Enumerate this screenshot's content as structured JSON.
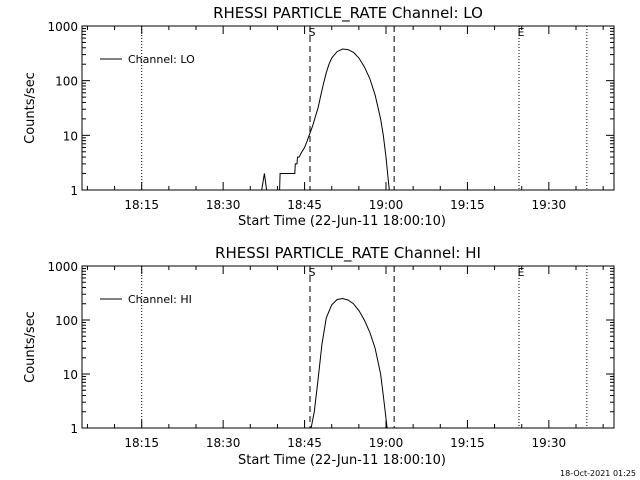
{
  "chart_data": [
    {
      "type": "line",
      "title": "RHESSI PARTICLE_RATE Channel: LO",
      "xlabel": "Start Time (22-Jun-11 18:00:10)",
      "ylabel": "Counts/sec",
      "yscale": "log",
      "ylim": [
        1,
        1000
      ],
      "xlim_minutes": [
        4.0,
        102.0
      ],
      "x_ticks": [
        {
          "label": "18:15",
          "minute": 15
        },
        {
          "label": "18:30",
          "minute": 30
        },
        {
          "label": "18:45",
          "minute": 45
        },
        {
          "label": "19:00",
          "minute": 60
        },
        {
          "label": "19:15",
          "minute": 75
        },
        {
          "label": "19:30",
          "minute": 90
        }
      ],
      "y_ticks": [
        {
          "label": "1",
          "value": 1
        },
        {
          "label": "10",
          "value": 10
        },
        {
          "label": "100",
          "value": 100
        },
        {
          "label": "1000",
          "value": 1000
        }
      ],
      "legend": "Channel: LO",
      "legend_position": "top-left",
      "markers": [
        {
          "minute": 15.0,
          "style": "dotted",
          "label": ""
        },
        {
          "minute": 46.0,
          "style": "dashed",
          "label": "S"
        },
        {
          "minute": 61.5,
          "style": "dashed",
          "label": ""
        },
        {
          "minute": 84.5,
          "style": "dotted",
          "label": "E"
        },
        {
          "minute": 97.0,
          "style": "dotted",
          "label": ""
        }
      ],
      "series": [
        {
          "name": "Channel: LO",
          "points": [
            [
              37.1,
              1
            ],
            [
              37.6,
              2
            ],
            [
              38.0,
              1
            ],
            [
              40.4,
              1
            ],
            [
              40.5,
              2
            ],
            [
              43.2,
              2
            ],
            [
              43.3,
              3
            ],
            [
              43.6,
              3
            ],
            [
              43.7,
              4
            ],
            [
              44.0,
              4
            ],
            [
              44.5,
              5
            ],
            [
              45.0,
              6
            ],
            [
              45.5,
              8
            ],
            [
              46.0,
              11
            ],
            [
              46.5,
              15
            ],
            [
              47.0,
              22
            ],
            [
              47.5,
              32
            ],
            [
              48.0,
              55
            ],
            [
              48.5,
              90
            ],
            [
              49.0,
              140
            ],
            [
              49.5,
              200
            ],
            [
              50.0,
              260
            ],
            [
              51.0,
              340
            ],
            [
              52.0,
              380
            ],
            [
              53.0,
              370
            ],
            [
              54.0,
              330
            ],
            [
              55.0,
              260
            ],
            [
              56.0,
              180
            ],
            [
              57.0,
              110
            ],
            [
              58.0,
              55
            ],
            [
              59.0,
              20
            ],
            [
              59.5,
              10
            ],
            [
              60.0,
              4
            ],
            [
              60.3,
              2
            ],
            [
              60.6,
              1
            ]
          ]
        }
      ]
    },
    {
      "type": "line",
      "title": "RHESSI PARTICLE_RATE Channel: HI",
      "xlabel": "Start Time (22-Jun-11 18:00:10)",
      "ylabel": "Counts/sec",
      "yscale": "log",
      "ylim": [
        1,
        1000
      ],
      "xlim_minutes": [
        4.0,
        102.0
      ],
      "x_ticks": [
        {
          "label": "18:15",
          "minute": 15
        },
        {
          "label": "18:30",
          "minute": 30
        },
        {
          "label": "18:45",
          "minute": 45
        },
        {
          "label": "19:00",
          "minute": 60
        },
        {
          "label": "19:15",
          "minute": 75
        },
        {
          "label": "19:30",
          "minute": 90
        }
      ],
      "y_ticks": [
        {
          "label": "1",
          "value": 1
        },
        {
          "label": "10",
          "value": 10
        },
        {
          "label": "100",
          "value": 100
        },
        {
          "label": "1000",
          "value": 1000
        }
      ],
      "legend": "Channel: HI",
      "legend_position": "top-left",
      "markers": [
        {
          "minute": 15.0,
          "style": "dotted",
          "label": ""
        },
        {
          "minute": 46.0,
          "style": "dashed",
          "label": "S"
        },
        {
          "minute": 61.5,
          "style": "dashed",
          "label": ""
        },
        {
          "minute": 84.5,
          "style": "dotted",
          "label": "E"
        },
        {
          "minute": 97.0,
          "style": "dotted",
          "label": ""
        }
      ],
      "series": [
        {
          "name": "Channel: HI",
          "points": [
            [
              46.2,
              1
            ],
            [
              46.8,
              2
            ],
            [
              47.5,
              8
            ],
            [
              48.2,
              35
            ],
            [
              49.0,
              110
            ],
            [
              50.0,
              190
            ],
            [
              51.0,
              240
            ],
            [
              52.0,
              250
            ],
            [
              53.0,
              235
            ],
            [
              54.0,
              200
            ],
            [
              55.0,
              150
            ],
            [
              56.0,
              100
            ],
            [
              57.0,
              60
            ],
            [
              58.0,
              30
            ],
            [
              59.0,
              10
            ],
            [
              59.5,
              4
            ],
            [
              60.0,
              1.5
            ],
            [
              60.2,
              1
            ]
          ]
        }
      ]
    }
  ],
  "footer": {
    "timestamp": "18-Oct-2021 01:25"
  }
}
